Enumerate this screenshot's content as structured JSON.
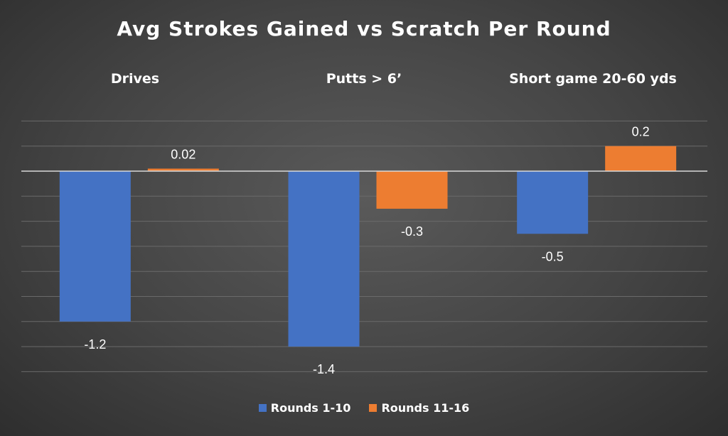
{
  "chart_data": {
    "type": "bar",
    "title": "Avg Strokes Gained vs Scratch Per Round",
    "categories": [
      "Drives",
      "Putts > 6’",
      "Short game 20-60 yds"
    ],
    "series": [
      {
        "name": "Rounds 1-10",
        "values": [
          -1.2,
          -1.4,
          -0.5
        ],
        "labels": [
          "-1.2",
          "-1.4",
          "-0.5"
        ],
        "color": "#4472c4"
      },
      {
        "name": "Rounds 11-16",
        "values": [
          0.02,
          -0.3,
          0.2
        ],
        "labels": [
          "0.02",
          "-0.3",
          "0.2"
        ],
        "color": "#ed7d31"
      }
    ],
    "ylim": [
      -1.6,
      0.4
    ],
    "grid": true,
    "legend_position": "bottom",
    "category_labels_position": "top"
  }
}
